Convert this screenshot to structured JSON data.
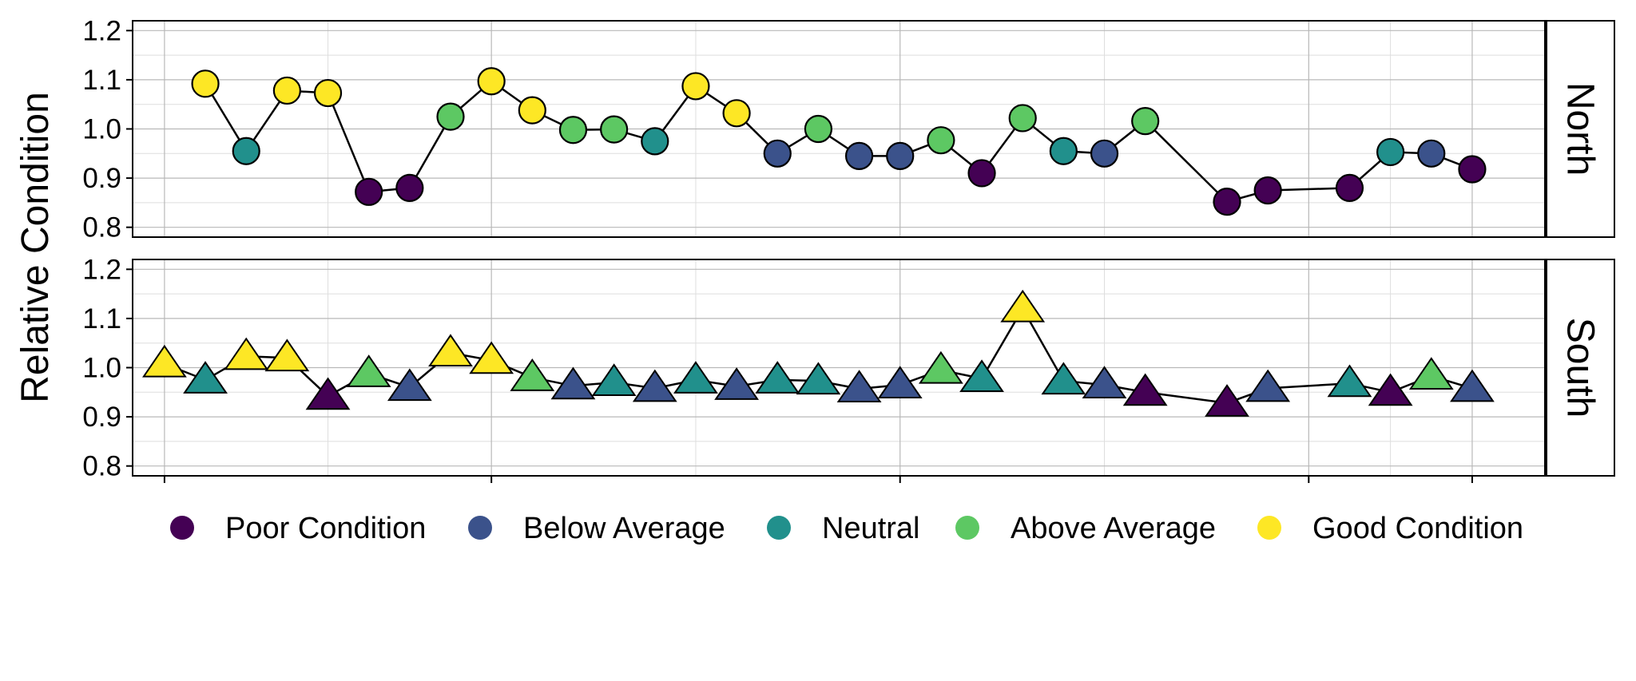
{
  "chart_data": {
    "type": "scatter",
    "ylabel": "Relative Condition",
    "xlabel": "",
    "ylim": [
      0.78,
      1.22
    ],
    "yticks": [
      "0.8",
      "0.9",
      "1.0",
      "1.1",
      "1.2"
    ],
    "grid": true,
    "legend_position": "bottom",
    "legend": [
      {
        "label": "Poor Condition",
        "color": "#440154"
      },
      {
        "label": "Below Average",
        "color": "#3B528B"
      },
      {
        "label": "Neutral",
        "color": "#21908C"
      },
      {
        "label": "Above Average",
        "color": "#5DC863"
      },
      {
        "label": "Good Condition",
        "color": "#FDE725"
      }
    ],
    "panels": [
      {
        "strip": "North",
        "marker": "circle",
        "points": [
          {
            "x": 2,
            "y": 1.092,
            "c": 4
          },
          {
            "x": 3,
            "y": 0.955,
            "c": 2
          },
          {
            "x": 4,
            "y": 1.078,
            "c": 4
          },
          {
            "x": 5,
            "y": 1.073,
            "c": 4
          },
          {
            "x": 6,
            "y": 0.872,
            "c": 0
          },
          {
            "x": 7,
            "y": 0.88,
            "c": 0
          },
          {
            "x": 8,
            "y": 1.025,
            "c": 3
          },
          {
            "x": 9,
            "y": 1.097,
            "c": 4
          },
          {
            "x": 10,
            "y": 1.038,
            "c": 4
          },
          {
            "x": 11,
            "y": 0.998,
            "c": 3
          },
          {
            "x": 12,
            "y": 0.999,
            "c": 3
          },
          {
            "x": 13,
            "y": 0.975,
            "c": 2
          },
          {
            "x": 14,
            "y": 1.087,
            "c": 4
          },
          {
            "x": 15,
            "y": 1.032,
            "c": 4
          },
          {
            "x": 16,
            "y": 0.95,
            "c": 1
          },
          {
            "x": 17,
            "y": 1.0,
            "c": 3
          },
          {
            "x": 18,
            "y": 0.945,
            "c": 1
          },
          {
            "x": 19,
            "y": 0.945,
            "c": 1
          },
          {
            "x": 20,
            "y": 0.977,
            "c": 3
          },
          {
            "x": 21,
            "y": 0.91,
            "c": 0
          },
          {
            "x": 22,
            "y": 1.022,
            "c": 3
          },
          {
            "x": 23,
            "y": 0.955,
            "c": 2
          },
          {
            "x": 24,
            "y": 0.95,
            "c": 1
          },
          {
            "x": 25,
            "y": 1.016,
            "c": 3
          },
          {
            "x": 27,
            "y": 0.852,
            "c": 0
          },
          {
            "x": 28,
            "y": 0.875,
            "c": 0
          },
          {
            "x": 30,
            "y": 0.88,
            "c": 0
          },
          {
            "x": 31,
            "y": 0.953,
            "c": 2
          },
          {
            "x": 32,
            "y": 0.95,
            "c": 1
          },
          {
            "x": 33,
            "y": 0.918,
            "c": 0
          }
        ]
      },
      {
        "strip": "South",
        "marker": "triangle",
        "points": [
          {
            "x": 1,
            "y": 1.008,
            "c": 4
          },
          {
            "x": 2,
            "y": 0.975,
            "c": 2
          },
          {
            "x": 3,
            "y": 1.023,
            "c": 4
          },
          {
            "x": 4,
            "y": 1.02,
            "c": 4
          },
          {
            "x": 5,
            "y": 0.942,
            "c": 0
          },
          {
            "x": 6,
            "y": 0.988,
            "c": 3
          },
          {
            "x": 7,
            "y": 0.96,
            "c": 1
          },
          {
            "x": 8,
            "y": 1.03,
            "c": 4
          },
          {
            "x": 9,
            "y": 1.015,
            "c": 4
          },
          {
            "x": 10,
            "y": 0.98,
            "c": 3
          },
          {
            "x": 11,
            "y": 0.963,
            "c": 1
          },
          {
            "x": 12,
            "y": 0.97,
            "c": 2
          },
          {
            "x": 13,
            "y": 0.958,
            "c": 1
          },
          {
            "x": 14,
            "y": 0.975,
            "c": 2
          },
          {
            "x": 15,
            "y": 0.962,
            "c": 1
          },
          {
            "x": 16,
            "y": 0.975,
            "c": 2
          },
          {
            "x": 17,
            "y": 0.973,
            "c": 2
          },
          {
            "x": 18,
            "y": 0.957,
            "c": 1
          },
          {
            "x": 19,
            "y": 0.965,
            "c": 1
          },
          {
            "x": 20,
            "y": 0.995,
            "c": 3
          },
          {
            "x": 21,
            "y": 0.978,
            "c": 2
          },
          {
            "x": 22,
            "y": 1.12,
            "c": 4
          },
          {
            "x": 23,
            "y": 0.973,
            "c": 2
          },
          {
            "x": 24,
            "y": 0.965,
            "c": 1
          },
          {
            "x": 25,
            "y": 0.95,
            "c": 0
          },
          {
            "x": 27,
            "y": 0.928,
            "c": 0
          },
          {
            "x": 28,
            "y": 0.958,
            "c": 1
          },
          {
            "x": 30,
            "y": 0.968,
            "c": 2
          },
          {
            "x": 31,
            "y": 0.95,
            "c": 0
          },
          {
            "x": 32,
            "y": 0.983,
            "c": 3
          },
          {
            "x": 33,
            "y": 0.958,
            "c": 1
          }
        ]
      }
    ]
  }
}
